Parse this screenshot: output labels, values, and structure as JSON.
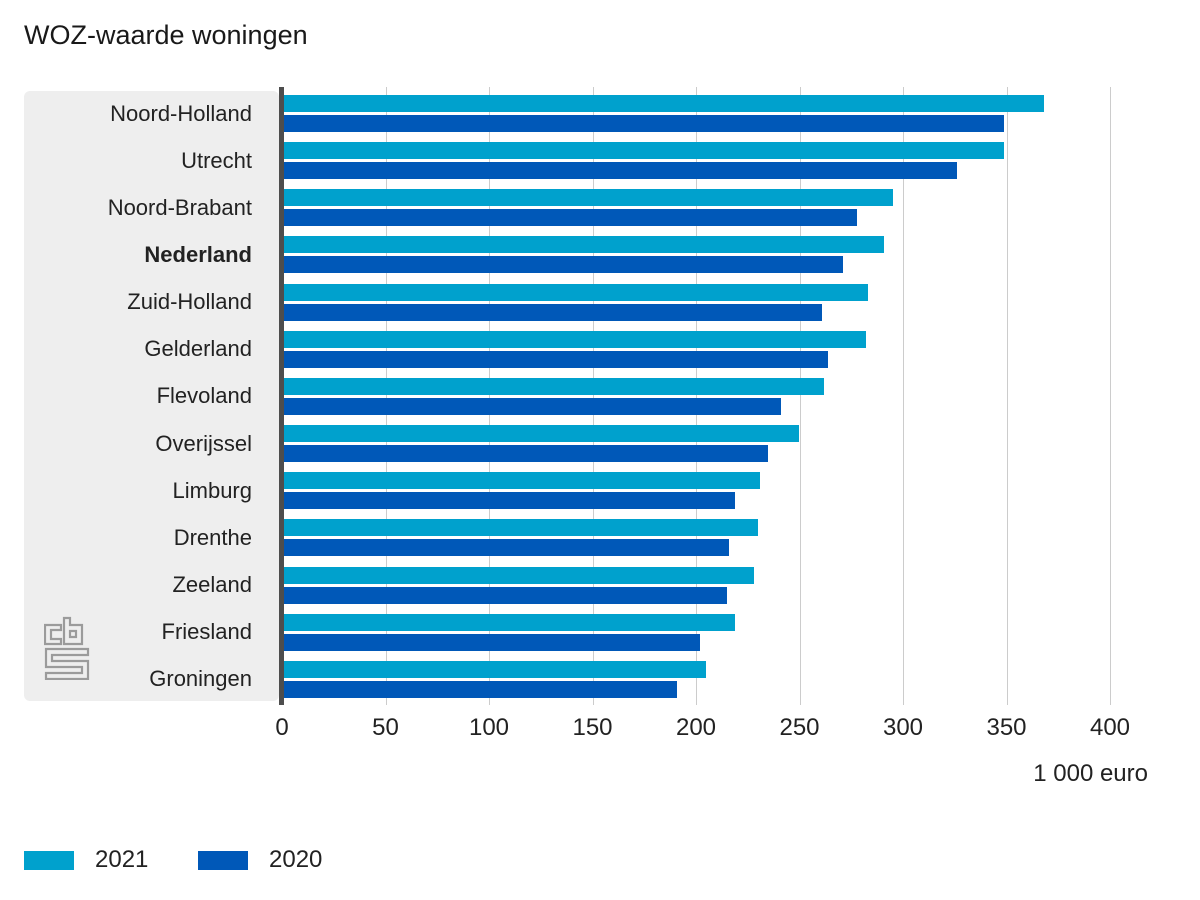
{
  "title": "WOZ-waarde woningen",
  "unit_label": "1 000 euro",
  "legend": {
    "items": [
      {
        "label": "2021"
      },
      {
        "label": "2020"
      }
    ]
  },
  "colors": {
    "series_2021": "#00a1cd",
    "series_2020": "#0058b8",
    "panel_bg": "#eeeeee",
    "axis_line": "#4d4d4d",
    "gridline": "#cccccc",
    "logo_gray": "#9b9b9b",
    "text": "#222222"
  },
  "logo_name": "cbs-logo",
  "chart_data": {
    "type": "bar",
    "orientation": "horizontal",
    "title": "WOZ-waarde woningen",
    "xlabel": "1 000 euro",
    "ylabel": "",
    "xlim": [
      0,
      400
    ],
    "xticks": [
      0,
      50,
      100,
      150,
      200,
      250,
      300,
      350,
      400
    ],
    "grid": true,
    "legend_position": "bottom",
    "bold_category": "Nederland",
    "categories": [
      "Noord-Holland",
      "Utrecht",
      "Noord-Brabant",
      "Nederland",
      "Zuid-Holland",
      "Gelderland",
      "Flevoland",
      "Overijssel",
      "Limburg",
      "Drenthe",
      "Zeeland",
      "Friesland",
      "Groningen"
    ],
    "series": [
      {
        "name": "2021",
        "color": "#00a1cd",
        "values": [
          367,
          348,
          294,
          290,
          282,
          281,
          261,
          249,
          230,
          229,
          227,
          218,
          204
        ]
      },
      {
        "name": "2020",
        "color": "#0058b8",
        "values": [
          348,
          325,
          277,
          270,
          260,
          263,
          240,
          234,
          218,
          215,
          214,
          201,
          190
        ]
      }
    ]
  }
}
